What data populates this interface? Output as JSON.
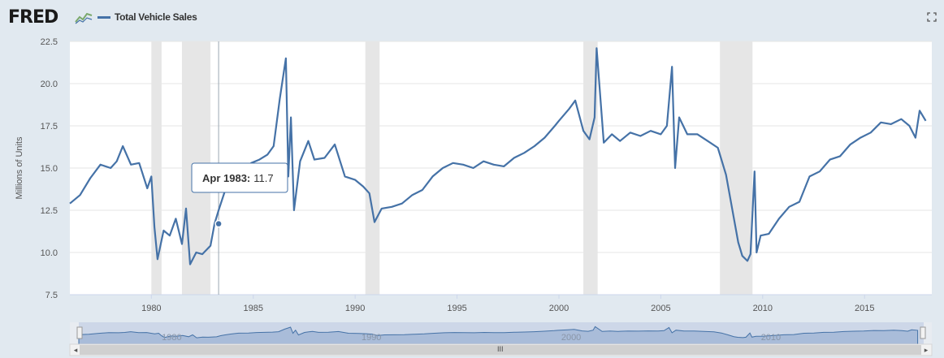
{
  "header": {
    "logo_text": "FRED",
    "logo_icon": "line-chart-icon",
    "series_label": "Total Vehicle Sales",
    "fullscreen_icon": "fullscreen-icon"
  },
  "tooltip": {
    "date": "Apr 1983",
    "sep": ":",
    "value": "11.7"
  },
  "navigator": {
    "labels": [
      "1980",
      "1990",
      "2000",
      "2010"
    ],
    "scroll_left_icon": "chevron-left-icon",
    "scroll_right_icon": "chevron-right-icon",
    "grip_label": "III"
  },
  "colors": {
    "series": "#4572a7",
    "recession": "#e6e6e6",
    "plot_bg": "#ffffff",
    "page_bg": "#e1e9f0"
  },
  "chart_data": {
    "type": "line",
    "title": "",
    "xlabel": "",
    "ylabel": "Millions of Units",
    "ylim": [
      7.5,
      22.5
    ],
    "yticks": [
      "7.5",
      "10.0",
      "12.5",
      "15.0",
      "17.5",
      "20.0",
      "22.5"
    ],
    "xticks": [
      "1980",
      "1985",
      "1990",
      "1995",
      "2000",
      "2005",
      "2010",
      "2015"
    ],
    "grid": "horizontal",
    "recessions": [
      [
        1980.0,
        1980.5
      ],
      [
        1981.5,
        1982.9
      ],
      [
        1990.5,
        1991.2
      ],
      [
        2001.2,
        2001.9
      ],
      [
        2007.9,
        2009.5
      ]
    ],
    "series": [
      {
        "name": "Total Vehicle Sales",
        "x": [
          1976.0,
          1976.5,
          1977.0,
          1977.5,
          1978.0,
          1978.3,
          1978.6,
          1979.0,
          1979.4,
          1979.8,
          1980.0,
          1980.15,
          1980.3,
          1980.6,
          1980.9,
          1981.2,
          1981.5,
          1981.7,
          1981.9,
          1982.2,
          1982.5,
          1982.9,
          1983.1,
          1983.3,
          1983.6,
          1984.0,
          1984.5,
          1984.9,
          1985.3,
          1985.7,
          1986.0,
          1986.3,
          1986.6,
          1986.72,
          1986.85,
          1987.0,
          1987.3,
          1987.7,
          1988.0,
          1988.5,
          1989.0,
          1989.5,
          1990.0,
          1990.4,
          1990.7,
          1990.95,
          1991.3,
          1991.8,
          1992.3,
          1992.8,
          1993.3,
          1993.8,
          1994.3,
          1994.8,
          1995.3,
          1995.8,
          1996.3,
          1996.8,
          1997.3,
          1997.8,
          1998.3,
          1998.8,
          1999.3,
          1999.8,
          2000.0,
          2000.5,
          2000.8,
          2001.2,
          2001.5,
          2001.75,
          2001.85,
          2002.2,
          2002.6,
          2003.0,
          2003.5,
          2004.0,
          2004.5,
          2005.0,
          2005.3,
          2005.55,
          2005.7,
          2005.9,
          2006.3,
          2006.8,
          2007.3,
          2007.8,
          2008.2,
          2008.5,
          2008.8,
          2009.0,
          2009.25,
          2009.4,
          2009.6,
          2009.7,
          2009.9,
          2010.3,
          2010.8,
          2011.3,
          2011.8,
          2012.3,
          2012.8,
          2013.3,
          2013.8,
          2014.3,
          2014.8,
          2015.3,
          2015.8,
          2016.3,
          2016.8,
          2017.2,
          2017.5,
          2017.7,
          2018.0
        ],
        "values": [
          12.9,
          13.4,
          14.4,
          15.2,
          15.0,
          15.4,
          16.3,
          15.2,
          15.3,
          13.8,
          14.5,
          11.5,
          9.6,
          11.3,
          11.0,
          12.0,
          10.5,
          12.6,
          9.3,
          10.0,
          9.9,
          10.4,
          11.7,
          12.5,
          13.6,
          14.6,
          14.8,
          15.3,
          15.5,
          15.8,
          16.3,
          19.1,
          21.5,
          14.5,
          18.0,
          12.5,
          15.4,
          16.6,
          15.5,
          15.6,
          16.4,
          14.5,
          14.3,
          13.9,
          13.5,
          11.8,
          12.6,
          12.7,
          12.9,
          13.4,
          13.7,
          14.5,
          15.0,
          15.3,
          15.2,
          15.0,
          15.4,
          15.2,
          15.1,
          15.6,
          15.9,
          16.3,
          16.8,
          17.5,
          17.8,
          18.5,
          19.0,
          17.2,
          16.7,
          18.0,
          22.1,
          16.5,
          17.0,
          16.6,
          17.1,
          16.9,
          17.2,
          17.0,
          17.5,
          21.0,
          15.0,
          18.0,
          17.0,
          17.0,
          16.6,
          16.2,
          14.6,
          12.6,
          10.6,
          9.8,
          9.5,
          9.9,
          14.8,
          10.0,
          11.0,
          11.1,
          12.0,
          12.7,
          13.0,
          14.5,
          14.8,
          15.5,
          15.7,
          16.4,
          16.8,
          17.1,
          17.7,
          17.6,
          17.9,
          17.5,
          16.8,
          18.4,
          17.8
        ]
      }
    ]
  }
}
